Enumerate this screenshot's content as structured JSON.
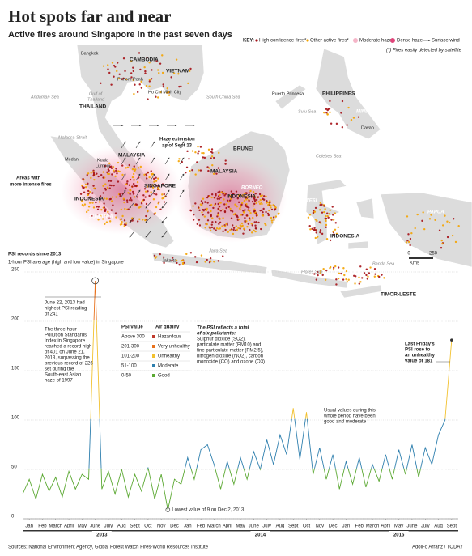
{
  "header": {
    "title": "Hot spots far and near",
    "subtitle": "Active fires around Singapore in the past seven days"
  },
  "key": {
    "label": "KEY:",
    "items": [
      "High confidence fires*",
      "Other active fires*",
      "Moderate haze",
      "Dense haze",
      "Surface wind"
    ],
    "note": "(*) Fires easily detected by satellite"
  },
  "map": {
    "labels": [
      "Bangkok",
      "CAMBODIA",
      "VIETNAM",
      "Phnom Penh",
      "Ho Chi Minh City",
      "Andaman Sea",
      "Gulf of",
      "Thailand",
      "THAILAND",
      "South China Sea",
      "Puerto Princesa",
      "PHILIPPINES",
      "MINDANAO",
      "Sulu Sea",
      "Davao",
      "Malacca Strait",
      "Medan",
      "Kuala",
      "Lumpur",
      "MALAYSIA",
      "Haze extension",
      "as of Sept 13",
      "BRUNEI",
      "Celebes Sea",
      "MALAYSIA",
      "BORNEO",
      "INDONESIA",
      "SINGAPORE",
      "Areas with",
      "more intense fires",
      "INDONESIA",
      "SUMATRA",
      "SULAWESI",
      "INDONESIA",
      "PAPUA",
      "Banda Sea",
      "Java Sea",
      "Jakarta",
      "JAVA",
      "BALI",
      "Flores Sea",
      "TIMOR-LESTE"
    ],
    "scale": {
      "ticks": [
        0,
        250
      ],
      "unit": "Kms"
    }
  },
  "chart_data": {
    "type": "line",
    "title": "PSI records since 2013",
    "subtitle": "1-hour PSI average (high and low value) in Singapore",
    "x": [
      0,
      0.5,
      1,
      1.5,
      2,
      2.5,
      3,
      3.5,
      4,
      4.5,
      5,
      5.5,
      6,
      6.5,
      7,
      7.5,
      8,
      8.5,
      9,
      9.5,
      10,
      10.5,
      11,
      11.5,
      12,
      12.5,
      13,
      13.5,
      14,
      14.5,
      15,
      15.5,
      16,
      16.5,
      17,
      17.5,
      18,
      18.5,
      19,
      19.5,
      20,
      20.5,
      21,
      21.5,
      22,
      22.5,
      23,
      23.5,
      24,
      24.5,
      25,
      25.5,
      26,
      26.5,
      27,
      27.5,
      28,
      28.5,
      29,
      29.5,
      30,
      30.5,
      31,
      31.5,
      32,
      32.5
    ],
    "series": [
      {
        "values": [
          25,
          40,
          20,
          45,
          28,
          42,
          22,
          48,
          30,
          45,
          40,
          241,
          30,
          48,
          25,
          50,
          22,
          45,
          28,
          52,
          20,
          45,
          9,
          40,
          35,
          62,
          40,
          70,
          75,
          55,
          30,
          58,
          35,
          62,
          40,
          68,
          50,
          80,
          55,
          85,
          65,
          112,
          60,
          108,
          45,
          72,
          40,
          65,
          30,
          58,
          35,
          62,
          32,
          55,
          38,
          65,
          40,
          70,
          45,
          75,
          42,
          72,
          55,
          85,
          100,
          181
        ]
      }
    ],
    "xlim": [
      0,
      33
    ],
    "xticks": [
      {
        "value": 0.5,
        "label": "Jan"
      },
      {
        "value": 1.5,
        "label": "Feb"
      },
      {
        "value": 2.5,
        "label": "March"
      },
      {
        "value": 3.5,
        "label": "April"
      },
      {
        "value": 4.5,
        "label": "May"
      },
      {
        "value": 5.5,
        "label": "June"
      },
      {
        "value": 6.5,
        "label": "July"
      },
      {
        "value": 7.5,
        "label": "Aug"
      },
      {
        "value": 8.5,
        "label": "Sept"
      },
      {
        "value": 9.5,
        "label": "Oct"
      },
      {
        "value": 10.5,
        "label": "Nov"
      },
      {
        "value": 11.5,
        "label": "Dec"
      },
      {
        "value": 12.5,
        "label": "Jan"
      },
      {
        "value": 13.5,
        "label": "Feb"
      },
      {
        "value": 14.5,
        "label": "March"
      },
      {
        "value": 15.5,
        "label": "April"
      },
      {
        "value": 16.5,
        "label": "May"
      },
      {
        "value": 17.5,
        "label": "June"
      },
      {
        "value": 18.5,
        "label": "July"
      },
      {
        "value": 19.5,
        "label": "Aug"
      },
      {
        "value": 20.5,
        "label": "Sept"
      },
      {
        "value": 21.5,
        "label": "Oct"
      },
      {
        "value": 22.5,
        "label": "Nov"
      },
      {
        "value": 23.5,
        "label": "Dec"
      },
      {
        "value": 24.5,
        "label": "Jan"
      },
      {
        "value": 25.5,
        "label": "Feb"
      },
      {
        "value": 26.5,
        "label": "March"
      },
      {
        "value": 27.5,
        "label": "April"
      },
      {
        "value": 28.5,
        "label": "May"
      },
      {
        "value": 29.5,
        "label": "June"
      },
      {
        "value": 30.5,
        "label": "July"
      },
      {
        "value": 31.5,
        "label": "Aug"
      },
      {
        "value": 32.5,
        "label": "Sept"
      }
    ],
    "year_ticks": [
      {
        "value": 6,
        "label": "2013"
      },
      {
        "value": 18,
        "label": "2014"
      },
      {
        "value": 28.5,
        "label": "2015"
      }
    ],
    "ylim": [
      0,
      250
    ],
    "yticks": [
      0,
      50,
      100,
      150,
      200,
      250
    ],
    "grid": true,
    "legend": {
      "headers": [
        "PSI value",
        "Air quality"
      ],
      "bands": [
        {
          "label": "Above 300",
          "name": "Hazardous",
          "min": 301,
          "color": "#c0392b"
        },
        {
          "label": "201-300",
          "name": "Very unhealthy",
          "min": 201,
          "color": "#e8711c"
        },
        {
          "label": "101-200",
          "name": "Unhealthy",
          "min": 101,
          "color": "#f2c12e"
        },
        {
          "label": "51-100",
          "name": "Moderate",
          "min": 51,
          "color": "#2e7fae"
        },
        {
          "label": "0-50",
          "name": "Good",
          "min": 0,
          "color": "#5ba832"
        }
      ]
    },
    "notes": {
      "pollutants": [
        "The PSI reflects a total",
        "of six pollutants:",
        "Sulphur dioxide (SO2),",
        "particulate matter (PM10) and",
        "fine particulate matter (PM2.5),",
        "nitrogen dioxide (NO2), carbon",
        "monoxide (CO) and ozone (O3)"
      ],
      "peak": [
        "June 22, 2013 had",
        "highest PSI reading",
        "of 241"
      ],
      "record": [
        "The three-hour",
        "Pollution Standards",
        "Index in Singapore",
        "reached a record high",
        "of 401 on June 21,",
        "2013, surpassing the",
        "previous record of 226",
        "set during the",
        "South-east Asian",
        "haze of 1997"
      ],
      "friday": [
        "Last Friday's",
        "PSI rose to",
        "an unhealthy",
        "value of 181"
      ],
      "usual": [
        "Usual values during this",
        "whole period have been",
        "good and moderate"
      ],
      "lowest": "Lowest value of 9 on Dec 2, 2013"
    }
  },
  "footer": {
    "sources": "Sources: National Environment Agency, Global Forest Watch Fires-World Resources Institute",
    "credit": "AdolFo Arranz / TODAY"
  }
}
